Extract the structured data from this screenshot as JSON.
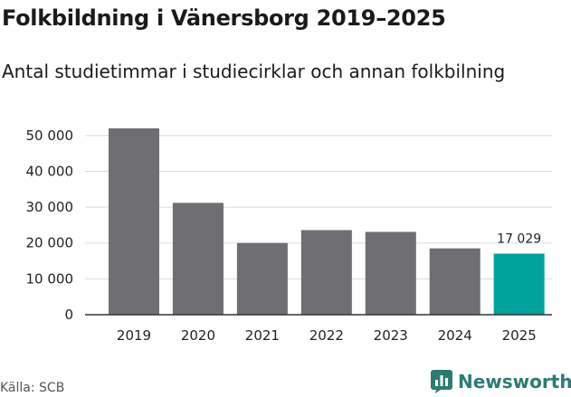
{
  "chart_data": {
    "type": "bar",
    "title": "Folkbildning i Vänersborg 2019–2025",
    "subtitle": "Antal studietimmar i studiecirklar och annan folkbilning",
    "categories": [
      "2019",
      "2020",
      "2021",
      "2022",
      "2023",
      "2024",
      "2025"
    ],
    "values": [
      52000,
      31200,
      20000,
      23600,
      23100,
      18500,
      17029
    ],
    "highlight_index": 6,
    "data_labels": [
      {
        "index": 6,
        "text": "17 029"
      }
    ],
    "yticks": [
      0,
      10000,
      20000,
      30000,
      40000,
      50000
    ],
    "ytick_labels": [
      "0",
      "10 000",
      "20 000",
      "30 000",
      "40 000",
      "50 000"
    ],
    "ylim": [
      0,
      55000
    ],
    "grid": true,
    "legend": "none",
    "colors": {
      "bar": "#6e6e73",
      "highlight": "#00a39b",
      "grid": "#d9d9d9",
      "axis": "#333333"
    }
  },
  "footer": {
    "source": "Källa: SCB",
    "brand": "Newsworthy"
  },
  "brand_colors": {
    "text": "#2b7b74",
    "icon": "#2b7b74"
  },
  "icons": {
    "brand_logo": "newsworthy-chart-icon"
  }
}
